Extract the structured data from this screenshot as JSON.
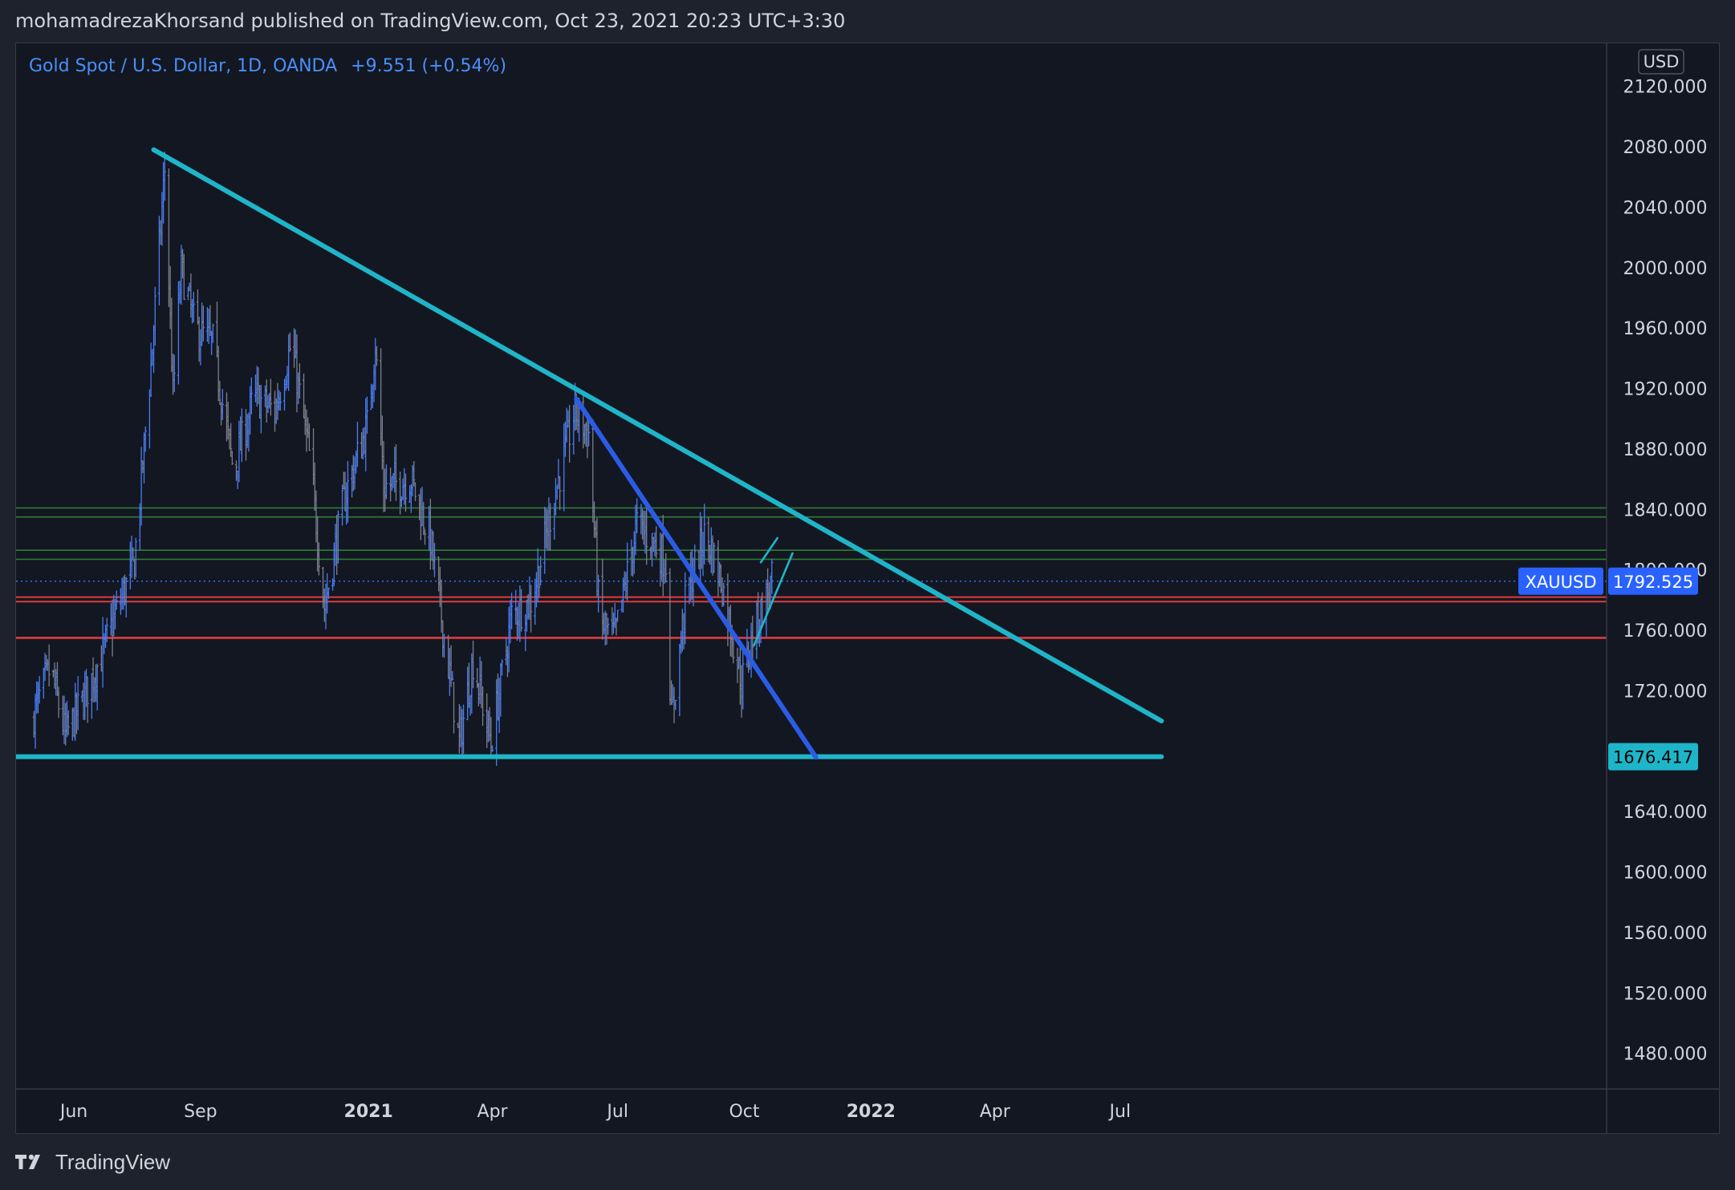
{
  "header": {
    "publisher_line": "mohamadrezaKhorsand published on TradingView.com, Oct 23, 2021 20:23 UTC+3:30"
  },
  "legend": {
    "symbol_text": "Gold Spot / U.S. Dollar, 1D, OANDA",
    "change_text": "+9.551 (+0.54%)"
  },
  "footer": {
    "brand": "TradingView"
  },
  "colors": {
    "background": "#131722",
    "frame": "#1e222d",
    "bar_up": "#4a7cf0",
    "bar_down": "#7a7f8e",
    "cyan_trend": "#1fb5c9",
    "blue_trend": "#2b5ce6",
    "green_zone": "#2e7d32",
    "red_zone": "#e03b3b",
    "axis_text": "#d1d4dc",
    "label_bg": "#2962ff"
  },
  "chart_data": {
    "type": "ohlc",
    "title": "Gold Spot / U.S. Dollar, 1D, OANDA",
    "currency": "USD",
    "ylim": [
      1465,
      2132
    ],
    "y_ticks": [
      2120,
      2080,
      2040,
      2000,
      1960,
      1920,
      1880,
      1840,
      1800,
      1760,
      1720,
      1640,
      1600,
      1560,
      1520,
      1480
    ],
    "x_ticks": [
      {
        "label": "Jun",
        "date": "2020-06-01",
        "bold": false
      },
      {
        "label": "Sep",
        "date": "2020-09-01",
        "bold": false
      },
      {
        "label": "2021",
        "date": "2021-01-01",
        "bold": true
      },
      {
        "label": "Apr",
        "date": "2021-04-01",
        "bold": false
      },
      {
        "label": "Jul",
        "date": "2021-07-01",
        "bold": false
      },
      {
        "label": "Oct",
        "date": "2021-10-01",
        "bold": false
      },
      {
        "label": "2022",
        "date": "2022-01-01",
        "bold": true
      },
      {
        "label": "Apr",
        "date": "2022-04-01",
        "bold": false
      },
      {
        "label": "Jul",
        "date": "2022-07-01",
        "bold": false
      }
    ],
    "price_path": [
      [
        "2020-05-01",
        1700
      ],
      [
        "2020-05-15",
        1735
      ],
      [
        "2020-05-26",
        1690
      ],
      [
        "2020-06-08",
        1715
      ],
      [
        "2020-06-22",
        1745
      ],
      [
        "2020-07-01",
        1770
      ],
      [
        "2020-07-15",
        1805
      ],
      [
        "2020-07-27",
        1935
      ],
      [
        "2020-08-06",
        2065
      ],
      [
        "2020-08-12",
        1915
      ],
      [
        "2020-08-18",
        2000
      ],
      [
        "2020-08-28",
        1960
      ],
      [
        "2020-09-10",
        1950
      ],
      [
        "2020-09-25",
        1865
      ],
      [
        "2020-10-10",
        1915
      ],
      [
        "2020-10-25",
        1905
      ],
      [
        "2020-11-06",
        1950
      ],
      [
        "2020-11-20",
        1870
      ],
      [
        "2020-11-30",
        1775
      ],
      [
        "2020-12-15",
        1850
      ],
      [
        "2020-12-31",
        1895
      ],
      [
        "2021-01-06",
        1950
      ],
      [
        "2021-01-12",
        1855
      ],
      [
        "2021-02-01",
        1860
      ],
      [
        "2021-02-15",
        1820
      ],
      [
        "2021-03-01",
        1730
      ],
      [
        "2021-03-08",
        1685
      ],
      [
        "2021-03-18",
        1740
      ],
      [
        "2021-03-31",
        1685
      ],
      [
        "2021-04-15",
        1770
      ],
      [
        "2021-04-30",
        1780
      ],
      [
        "2021-05-15",
        1845
      ],
      [
        "2021-05-31",
        1905
      ],
      [
        "2021-06-10",
        1890
      ],
      [
        "2021-06-18",
        1765
      ],
      [
        "2021-06-29",
        1755
      ],
      [
        "2021-07-15",
        1830
      ],
      [
        "2021-07-30",
        1815
      ],
      [
        "2021-08-05",
        1805
      ],
      [
        "2021-08-09",
        1700
      ],
      [
        "2021-08-20",
        1785
      ],
      [
        "2021-09-03",
        1825
      ],
      [
        "2021-09-15",
        1790
      ],
      [
        "2021-09-29",
        1725
      ],
      [
        "2021-10-08",
        1760
      ],
      [
        "2021-10-22",
        1795
      ]
    ],
    "horizontal_levels": [
      {
        "name": "green-zone-upper-a",
        "price": 1841,
        "color": "green"
      },
      {
        "name": "green-zone-upper-b",
        "price": 1835,
        "color": "green"
      },
      {
        "name": "green-zone-lower-a",
        "price": 1813,
        "color": "green"
      },
      {
        "name": "green-zone-lower-b",
        "price": 1807,
        "color": "green"
      },
      {
        "name": "red-zone-a",
        "price": 1782,
        "color": "red"
      },
      {
        "name": "red-zone-b",
        "price": 1779,
        "color": "red"
      },
      {
        "name": "red-support",
        "price": 1755,
        "color": "red"
      }
    ],
    "current_price_line": 1792.525,
    "trendlines": [
      {
        "name": "descending-resistance",
        "color": "cyan",
        "from": [
          "2020-07-29",
          2078
        ],
        "to": [
          "2022-07-31",
          1700
        ]
      },
      {
        "name": "horizontal-support",
        "color": "cyan",
        "from": [
          "2020-04-20",
          1676.417
        ],
        "to": [
          "2022-07-31",
          1676.417
        ]
      },
      {
        "name": "steep-downtrend",
        "color": "blue",
        "from": [
          "2021-06-01",
          1913
        ],
        "to": [
          "2021-11-22",
          1676
        ]
      },
      {
        "name": "channel-upper",
        "color": "cyan-thin",
        "from": [
          "2021-10-13",
          1805
        ],
        "to": [
          "2021-10-25",
          1821
        ]
      },
      {
        "name": "channel-lower",
        "color": "cyan-thin",
        "from": [
          "2021-10-08",
          1750
        ],
        "to": [
          "2021-11-05",
          1811
        ]
      }
    ],
    "price_labels": [
      {
        "name": "xauusd",
        "symbol": "XAUUSD",
        "value": "1792.525"
      },
      {
        "name": "support",
        "value": "1676.417"
      }
    ]
  }
}
